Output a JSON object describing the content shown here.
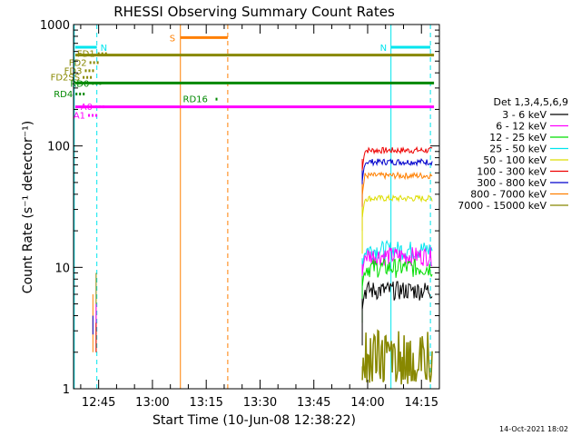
{
  "chart_data": {
    "type": "line",
    "title": "RHESSI Observing Summary Count Rates",
    "xlabel": "Start Time (10-Jun-08 12:38:22)",
    "ylabel": "Count Rate (s⁻¹ detector⁻¹)",
    "y_scale": "log",
    "ylim": [
      1,
      1000
    ],
    "xlim_minutes": [
      758,
      860
    ],
    "x_ticks": [
      {
        "label": "12:45",
        "minutes": 765
      },
      {
        "label": "13:00",
        "minutes": 780
      },
      {
        "label": "13:15",
        "minutes": 795
      },
      {
        "label": "13:30",
        "minutes": 810
      },
      {
        "label": "13:45",
        "minutes": 825
      },
      {
        "label": "14:00",
        "minutes": 840
      },
      {
        "label": "14:15",
        "minutes": 855
      }
    ],
    "y_ticks": [
      {
        "label": "1",
        "value": 1
      },
      {
        "label": "10",
        "value": 10
      },
      {
        "label": "100",
        "value": 100
      },
      {
        "label": "1000",
        "value": 1000
      }
    ],
    "legend": {
      "title": "Det 1,3,4,5,6,9",
      "placement": "right",
      "entries": [
        {
          "label": "3 - 6 keV",
          "color": "#000000"
        },
        {
          "label": "6 - 12 keV",
          "color": "#ff00ff"
        },
        {
          "label": "12 - 25 keV",
          "color": "#00dd00"
        },
        {
          "label": "25 - 50 keV",
          "color": "#00e5ee"
        },
        {
          "label": "50 - 100 keV",
          "color": "#dddd00"
        },
        {
          "label": "100 - 300 keV",
          "color": "#ee0000"
        },
        {
          "label": "300 - 800 keV",
          "color": "#0000cc"
        },
        {
          "label": "800 - 7000 keV",
          "color": "#ff7f00"
        },
        {
          "label": "7000 - 15000 keV",
          "color": "#888800"
        }
      ]
    },
    "flag_bars": [
      {
        "label": "N",
        "color": "#00e5ee",
        "x": [
          758.5,
          764.5
        ],
        "y": 650
      },
      {
        "label": "N",
        "color": "#00e5ee",
        "x": [
          846.5,
          857.5
        ],
        "y": 650
      },
      {
        "label": "S",
        "color": "#ff7f00",
        "x": [
          787.8,
          801.0
        ],
        "y": 780
      },
      {
        "label": "",
        "color": "#888800",
        "x": [
          758.5,
          858.5
        ],
        "y": 560
      },
      {
        "label": "",
        "color": "#008800",
        "x": [
          758.5,
          858.5
        ],
        "y": 330
      },
      {
        "label": "",
        "color": "#ff00ff",
        "x": [
          758.5,
          858.5
        ],
        "y": 210
      }
    ],
    "flag_annotations": [
      {
        "label": "FD1",
        "color": "#888800",
        "x": 764.0,
        "y": 580,
        "anchor": "end"
      },
      {
        "label": "FD2",
        "color": "#888800",
        "x": 761.7,
        "y": 490,
        "anchor": "end"
      },
      {
        "label": "FD3",
        "color": "#888800",
        "x": 760.4,
        "y": 420,
        "anchor": "end"
      },
      {
        "label": "FD2SS",
        "color": "#888800",
        "x": 759.8,
        "y": 370,
        "anchor": "end"
      },
      {
        "label": "RD0",
        "color": "#008800",
        "x": 762.4,
        "y": 330,
        "anchor": "end"
      },
      {
        "label": "RD4",
        "color": "#008800",
        "x": 757.8,
        "y": 270,
        "anchor": "end"
      },
      {
        "label": "RD16",
        "color": "#008800",
        "x": 788.5,
        "y": 245,
        "anchor": "start"
      },
      {
        "label": "A0",
        "color": "#ff00ff",
        "x": 763.3,
        "y": 212,
        "anchor": "end"
      },
      {
        "label": "A1",
        "color": "#ff00ff",
        "x": 761.3,
        "y": 180,
        "anchor": "end"
      }
    ],
    "vertical_markers": [
      {
        "x": 758.2,
        "color": "#00e5ee",
        "style": "solid"
      },
      {
        "x": 764.5,
        "color": "#00e5ee",
        "style": "dashed"
      },
      {
        "x": 787.8,
        "color": "#ff7f00",
        "style": "solid"
      },
      {
        "x": 801.0,
        "color": "#ff7f00",
        "style": "dashed"
      },
      {
        "x": 846.5,
        "color": "#00e5ee",
        "style": "solid"
      },
      {
        "x": 857.5,
        "color": "#00e5ee",
        "style": "dashed"
      }
    ],
    "series": [
      {
        "name": "100 - 300 keV",
        "color": "#ee0000",
        "start": 838.5,
        "end": 858.0,
        "level": 92
      },
      {
        "name": "300 - 800 keV",
        "color": "#0000cc",
        "start": 838.5,
        "end": 858.0,
        "level": 74
      },
      {
        "name": "800 - 7000 keV",
        "color": "#ff7f00",
        "start": 838.5,
        "end": 858.0,
        "level": 57
      },
      {
        "name": "50 - 100 keV",
        "color": "#dddd00",
        "start": 838.5,
        "end": 858.0,
        "level": 37
      },
      {
        "name": "25 - 50 keV",
        "color": "#00e5ee",
        "start": 838.5,
        "end": 858.0,
        "level": 14
      },
      {
        "name": "6 - 12 keV",
        "color": "#ff00ff",
        "start": 838.5,
        "end": 858.0,
        "level": 12.5
      },
      {
        "name": "12 - 25 keV",
        "color": "#00dd00",
        "start": 838.5,
        "end": 858.0,
        "level": 10
      },
      {
        "name": "3 - 6 keV",
        "color": "#000000",
        "start": 838.5,
        "end": 858.0,
        "level": 6.5
      },
      {
        "name": "7000 - 15000 keV",
        "color": "#888800",
        "start": 838.5,
        "end": 858.0,
        "level": 1.8
      }
    ],
    "early_spikes": [
      {
        "color": "#ff7f00",
        "x": 763.4,
        "low": 2.0,
        "high": 6.0
      },
      {
        "color": "#0000cc",
        "x": 763.4,
        "low": 2.8,
        "high": 4.0
      },
      {
        "color": "#888800",
        "x": 764.3,
        "low": 2.0,
        "high": 9.0
      },
      {
        "color": "#ff00ff",
        "x": 764.3,
        "low": 3.0,
        "high": 5.0
      },
      {
        "color": "#ee0000",
        "x": 764.3,
        "low": 2.0,
        "high": 3.5
      }
    ]
  },
  "footer": {
    "date_stamp": "14-Oct-2021 18:02"
  }
}
